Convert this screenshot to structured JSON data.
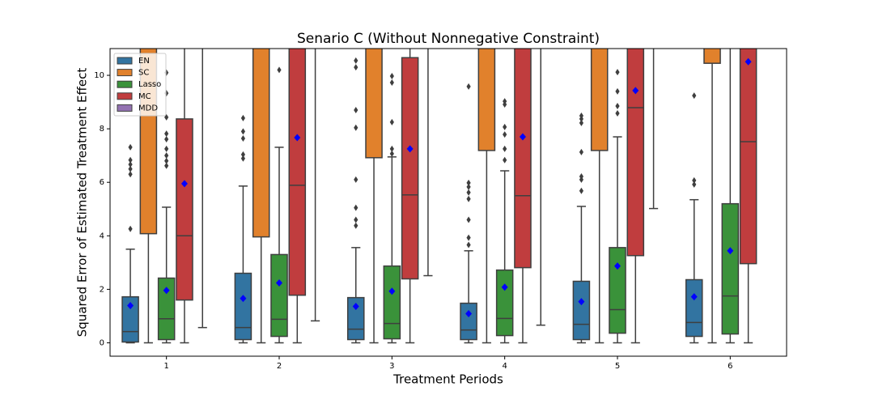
{
  "chart_data": {
    "type": "box",
    "title": "Senario C (Without Nonnegative Constraint)",
    "x_label": "Treatment Periods",
    "y_label": "Squared Error of Estimated Treatment Effect",
    "categories": [
      "1",
      "2",
      "3",
      "4",
      "5",
      "6"
    ],
    "ylim": [
      -0.5,
      11
    ],
    "yticks": [
      0,
      2,
      4,
      6,
      8,
      10
    ],
    "legend_position": "upper-left",
    "mean_color": "#0000ff",
    "series": [
      {
        "name": "EN",
        "color": "#3274a1",
        "whislo": [
          0,
          0,
          0,
          0,
          0,
          0
        ],
        "q1": [
          0.03,
          0.12,
          0.12,
          0.12,
          0.12,
          0.24
        ],
        "median": [
          0.42,
          0.57,
          0.51,
          0.48,
          0.69,
          0.76
        ],
        "q3": [
          1.72,
          2.6,
          1.69,
          1.48,
          2.3,
          2.36
        ],
        "whishi": [
          3.5,
          5.86,
          3.56,
          3.44,
          5.1,
          5.35
        ],
        "mean": [
          1.39,
          1.66,
          1.36,
          1.09,
          1.54,
          1.72
        ],
        "fliers": [
          [
            4.26,
            6.3,
            6.5,
            6.67,
            6.83,
            7.31
          ],
          [
            6.89,
            7.04,
            7.64,
            7.9,
            8.4
          ],
          [
            4.38,
            4.6,
            5.05,
            6.1,
            8.04,
            8.7,
            10.3,
            10.55
          ],
          [
            3.66,
            3.93,
            4.6,
            5.38,
            5.62,
            5.83,
            5.98,
            9.58
          ],
          [
            5.68,
            6.1,
            6.22,
            7.13,
            8.22,
            8.37,
            8.49
          ],
          [
            5.92,
            6.07,
            9.24
          ]
        ]
      },
      {
        "name": "SC",
        "color": "#e1812c",
        "whislo": [
          0,
          0,
          0,
          0,
          0,
          0
        ],
        "q1": [
          4.08,
          3.96,
          6.92,
          7.19,
          7.19,
          10.45
        ],
        "median": [
          null,
          null,
          null,
          null,
          null,
          null
        ],
        "q3": [
          null,
          null,
          null,
          null,
          null,
          null
        ],
        "whishi": [
          null,
          null,
          null,
          null,
          null,
          null
        ],
        "mean": [
          null,
          null,
          null,
          null,
          null,
          null
        ],
        "fliers": [
          [],
          [],
          [],
          [],
          [],
          []
        ]
      },
      {
        "name": "Lasso",
        "color": "#3a923a",
        "whislo": [
          0,
          0,
          0,
          0,
          0,
          0
        ],
        "q1": [
          0.12,
          0.24,
          0.15,
          0.27,
          0.36,
          0.33
        ],
        "median": [
          0.9,
          0.88,
          0.72,
          0.91,
          1.24,
          1.75
        ],
        "q3": [
          2.42,
          3.3,
          2.87,
          2.72,
          3.56,
          5.2
        ],
        "whishi": [
          5.07,
          7.31,
          6.95,
          6.43,
          7.7,
          null
        ],
        "mean": [
          1.96,
          2.24,
          1.93,
          2.08,
          2.87,
          3.44
        ],
        "fliers": [
          [
            6.62,
            6.8,
            7.0,
            7.25,
            7.61,
            7.82,
            8.43,
            9.33,
            10.1
          ],
          [
            10.2
          ],
          [
            7.07,
            7.25,
            8.25,
            9.73,
            9.97
          ],
          [
            6.83,
            7.25,
            7.79,
            8.07,
            8.91,
            9.03
          ],
          [
            8.58,
            8.85,
            9.4,
            10.12
          ],
          []
        ]
      },
      {
        "name": "MC",
        "color": "#c03d3e",
        "whislo": [
          0,
          0,
          0,
          0,
          0,
          0
        ],
        "q1": [
          1.6,
          1.78,
          2.39,
          2.81,
          3.26,
          2.96
        ],
        "median": [
          4.0,
          5.89,
          5.53,
          5.5,
          8.79,
          7.52
        ],
        "q3": [
          8.37,
          null,
          10.66,
          null,
          null,
          null
        ],
        "whishi": [
          null,
          null,
          null,
          null,
          null,
          null
        ],
        "mean": [
          5.95,
          7.67,
          7.25,
          7.7,
          9.43,
          10.51
        ],
        "fliers": [
          [],
          [],
          [],
          [],
          [],
          []
        ]
      },
      {
        "name": "MDD",
        "color": "#9372b2",
        "whislo": [
          0.57,
          0.82,
          2.51,
          0.66,
          5.02,
          null
        ],
        "q1": [
          null,
          null,
          null,
          null,
          null,
          null
        ],
        "median": [
          null,
          null,
          null,
          null,
          null,
          null
        ],
        "q3": [
          null,
          null,
          null,
          null,
          null,
          null
        ],
        "whishi": [
          null,
          null,
          null,
          null,
          null,
          null
        ],
        "mean": [
          null,
          null,
          null,
          null,
          null,
          null
        ],
        "fliers": [
          [],
          [],
          [],
          [],
          [],
          []
        ]
      }
    ]
  }
}
